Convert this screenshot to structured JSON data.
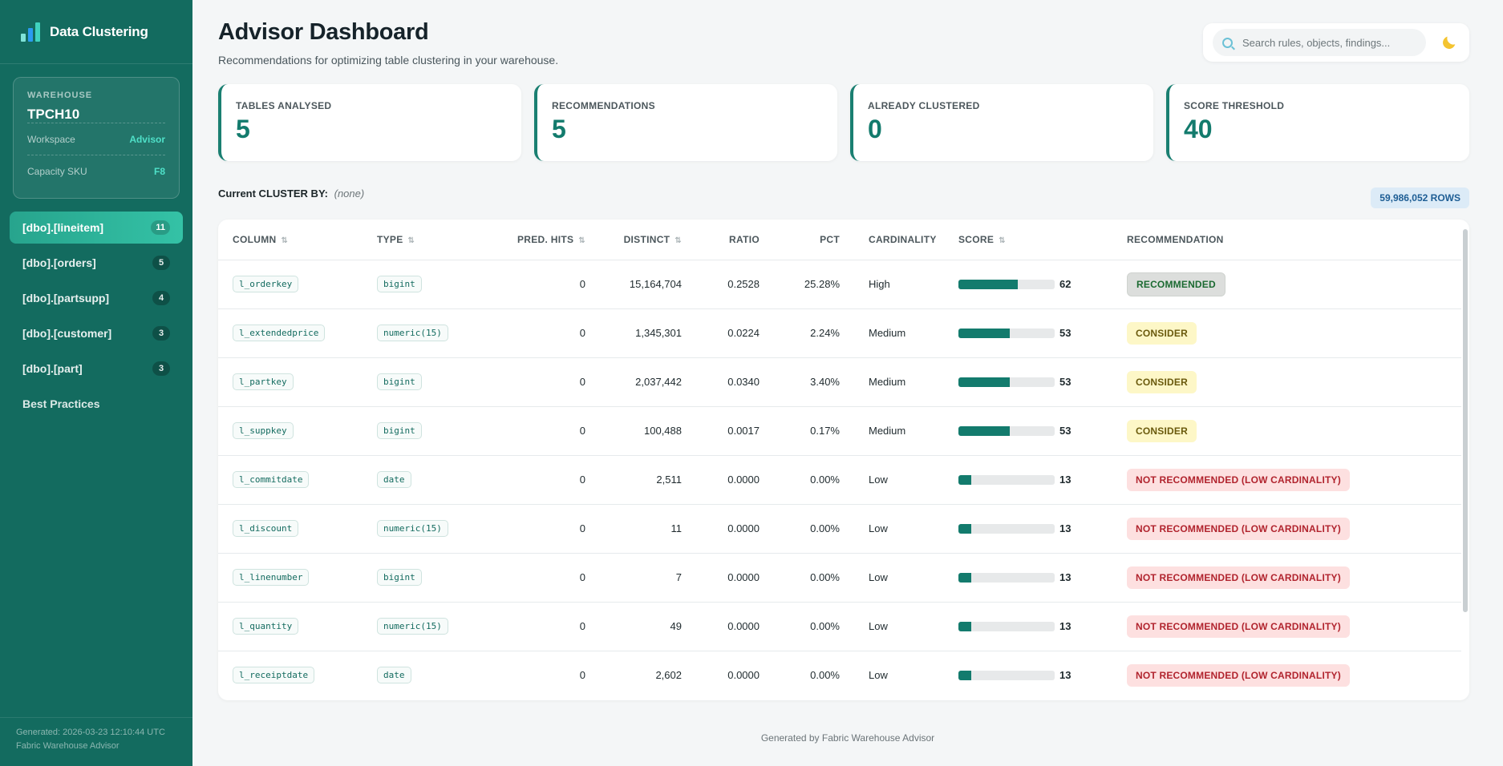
{
  "app": {
    "title": "Data Clustering"
  },
  "warehouse": {
    "label": "WAREHOUSE",
    "name": "TPCH10",
    "rows": [
      {
        "label": "Workspace",
        "value": "Advisor"
      },
      {
        "label": "Capacity SKU",
        "value": "F8"
      }
    ]
  },
  "nav": {
    "items": [
      {
        "label": "[dbo].[lineitem]",
        "count": "11",
        "active": true
      },
      {
        "label": "[dbo].[orders]",
        "count": "5"
      },
      {
        "label": "[dbo].[partsupp]",
        "count": "4"
      },
      {
        "label": "[dbo].[customer]",
        "count": "3"
      },
      {
        "label": "[dbo].[part]",
        "count": "3"
      }
    ],
    "best_practices": "Best Practices"
  },
  "sidebar_footer": {
    "generated": "Generated: 2026-03-23 12:10:44 UTC",
    "by": "Fabric Warehouse Advisor"
  },
  "header": {
    "title": "Advisor Dashboard",
    "subtitle": "Recommendations for optimizing table clustering in your warehouse.",
    "search_placeholder": "Search rules, objects, findings...",
    "theme_icon": "moon-icon"
  },
  "stats": [
    {
      "label": "TABLES ANALYSED",
      "value": "5"
    },
    {
      "label": "RECOMMENDATIONS",
      "value": "5"
    },
    {
      "label": "ALREADY CLUSTERED",
      "value": "0"
    },
    {
      "label": "SCORE THRESHOLD",
      "value": "40"
    }
  ],
  "cluster": {
    "label": "Current CLUSTER BY:",
    "value": "(none)"
  },
  "rows_badge": "59,986,052 ROWS",
  "table": {
    "headers": [
      "COLUMN",
      "TYPE",
      "PRED. HITS",
      "DISTINCT",
      "RATIO",
      "PCT",
      "CARDINALITY",
      "SCORE",
      "RECOMMENDATION"
    ],
    "sort_glyph": "⇅",
    "rows": [
      {
        "column": "l_orderkey",
        "type": "bigint",
        "hits": "0",
        "distinct": "15,164,704",
        "ratio": "0.2528",
        "pct": "25.28%",
        "cardinality": "High",
        "score": "62",
        "score_value": 62,
        "rec": "RECOMMENDED",
        "rec_kind": "recommended"
      },
      {
        "column": "l_extendedprice",
        "type": "numeric(15)",
        "hits": "0",
        "distinct": "1,345,301",
        "ratio": "0.0224",
        "pct": "2.24%",
        "cardinality": "Medium",
        "score": "53",
        "score_value": 53,
        "rec": "CONSIDER",
        "rec_kind": "consider"
      },
      {
        "column": "l_partkey",
        "type": "bigint",
        "hits": "0",
        "distinct": "2,037,442",
        "ratio": "0.0340",
        "pct": "3.40%",
        "cardinality": "Medium",
        "score": "53",
        "score_value": 53,
        "rec": "CONSIDER",
        "rec_kind": "consider"
      },
      {
        "column": "l_suppkey",
        "type": "bigint",
        "hits": "0",
        "distinct": "100,488",
        "ratio": "0.0017",
        "pct": "0.17%",
        "cardinality": "Medium",
        "score": "53",
        "score_value": 53,
        "rec": "CONSIDER",
        "rec_kind": "consider"
      },
      {
        "column": "l_commitdate",
        "type": "date",
        "hits": "0",
        "distinct": "2,511",
        "ratio": "0.0000",
        "pct": "0.00%",
        "cardinality": "Low",
        "score": "13",
        "score_value": 13,
        "rec": "NOT RECOMMENDED (LOW CARDINALITY)",
        "rec_kind": "notrec"
      },
      {
        "column": "l_discount",
        "type": "numeric(15)",
        "hits": "0",
        "distinct": "11",
        "ratio": "0.0000",
        "pct": "0.00%",
        "cardinality": "Low",
        "score": "13",
        "score_value": 13,
        "rec": "NOT RECOMMENDED (LOW CARDINALITY)",
        "rec_kind": "notrec"
      },
      {
        "column": "l_linenumber",
        "type": "bigint",
        "hits": "0",
        "distinct": "7",
        "ratio": "0.0000",
        "pct": "0.00%",
        "cardinality": "Low",
        "score": "13",
        "score_value": 13,
        "rec": "NOT RECOMMENDED (LOW CARDINALITY)",
        "rec_kind": "notrec"
      },
      {
        "column": "l_quantity",
        "type": "numeric(15)",
        "hits": "0",
        "distinct": "49",
        "ratio": "0.0000",
        "pct": "0.00%",
        "cardinality": "Low",
        "score": "13",
        "score_value": 13,
        "rec": "NOT RECOMMENDED (LOW CARDINALITY)",
        "rec_kind": "notrec"
      },
      {
        "column": "l_receiptdate",
        "type": "date",
        "hits": "0",
        "distinct": "2,602",
        "ratio": "0.0000",
        "pct": "0.00%",
        "cardinality": "Low",
        "score": "13",
        "score_value": 13,
        "rec": "NOT RECOMMENDED (LOW CARDINALITY)",
        "rec_kind": "notrec"
      }
    ]
  },
  "footer": "Generated by Fabric Warehouse Advisor",
  "colors": {
    "sidebar": "#136b5f",
    "accent": "#137b6d",
    "active_nav": "#2bb39a"
  }
}
